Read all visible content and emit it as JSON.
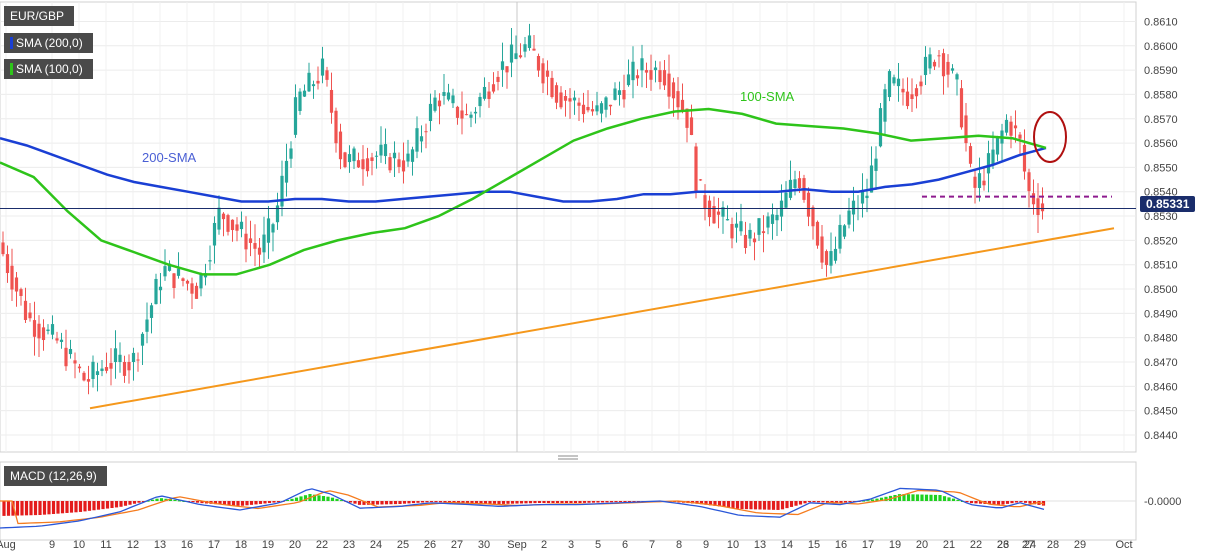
{
  "legend": {
    "pair": "EUR/GBP",
    "sma200": "SMA (200,0)",
    "sma100": "SMA (100,0)",
    "macd": "MACD (12,26,9)"
  },
  "current_price": "0.85331",
  "colors": {
    "up": "#26a69a",
    "down": "#ef5350",
    "sma200": "#1a3fd4",
    "sma100": "#2ec41a",
    "trendline": "#f5981c",
    "support": "#8e1a8e",
    "circle": "#b01010",
    "macd_line": "#2a57d8",
    "signal_line": "#f57c1f",
    "hist_pos": "#1fd11f",
    "hist_neg": "#e31c1c"
  },
  "chart_data": {
    "type": "candlestick",
    "price_axis": {
      "range": [
        0.8433,
        0.8618
      ],
      "ticks": [
        "0.8610",
        "0.8600",
        "0.8590",
        "0.8580",
        "0.8570",
        "0.8560",
        "0.8550",
        "0.8540",
        "0.8530",
        "0.8520",
        "0.8510",
        "0.8500",
        "0.8490",
        "0.8480",
        "0.8470",
        "0.8460",
        "0.8450",
        "0.8440"
      ]
    },
    "date_axis": {
      "ticks": [
        "Aug",
        "9",
        "10",
        "11",
        "12",
        "13",
        "16",
        "17",
        "18",
        "19",
        "20",
        "22",
        "23",
        "24",
        "25",
        "26",
        "27",
        "30",
        "Sep",
        "2",
        "3",
        "5",
        "6",
        "7",
        "8",
        "9",
        "10",
        "13",
        "14",
        "15",
        "16",
        "17",
        "19",
        "20",
        "21",
        "22",
        "23",
        "24",
        "26",
        "27",
        "28",
        "29",
        "Oct"
      ]
    },
    "annotations": {
      "sma100_label": "100-SMA",
      "sma200_label": "200-SMA"
    },
    "trendline": {
      "from": 0.8451,
      "to": 0.8525
    },
    "support_level": 0.8538,
    "last_price": 0.85331,
    "macd_axis": {
      "tick": "-0.0000"
    },
    "sma200": [
      0.8562,
      0.8559,
      0.8555,
      0.8551,
      0.8547,
      0.8544,
      0.8542,
      0.854,
      0.8538,
      0.8536,
      0.8536,
      0.8537,
      0.8537,
      0.8536,
      0.8536,
      0.8537,
      0.8538,
      0.8539,
      0.854,
      0.854,
      0.8538,
      0.8536,
      0.8536,
      0.8537,
      0.8539,
      0.8539,
      0.854,
      0.854,
      0.854,
      0.854,
      0.8541,
      0.854,
      0.854,
      0.8542,
      0.8543,
      0.8545,
      0.8548,
      0.8551,
      0.8555,
      0.8558
    ],
    "sma100": [
      0.8552,
      0.8546,
      0.8532,
      0.852,
      0.8515,
      0.851,
      0.8506,
      0.8506,
      0.851,
      0.8516,
      0.852,
      0.8523,
      0.8525,
      0.853,
      0.8537,
      0.8545,
      0.8553,
      0.8561,
      0.8566,
      0.857,
      0.8573,
      0.8574,
      0.8572,
      0.8568,
      0.8567,
      0.8566,
      0.8564,
      0.8561,
      0.8562,
      0.8563,
      0.8562,
      0.8558
    ]
  }
}
